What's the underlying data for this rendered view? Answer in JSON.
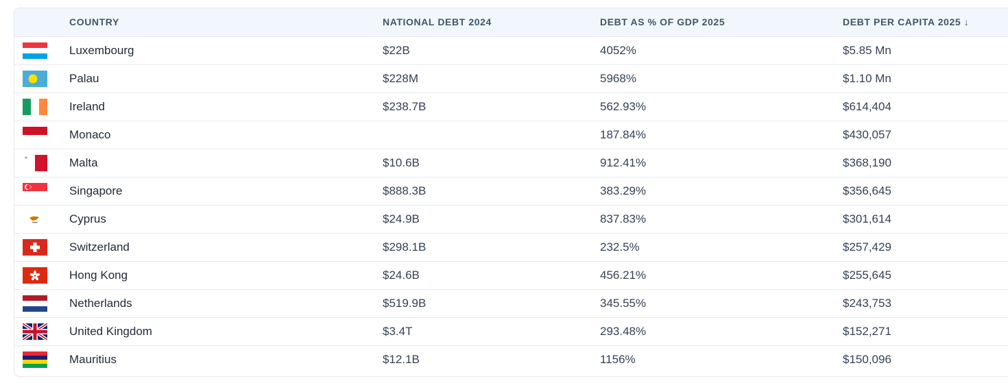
{
  "table": {
    "headers": {
      "country": "COUNTRY",
      "national_debt": "NATIONAL DEBT 2024",
      "debt_gdp": "DEBT AS % OF GDP 2025",
      "debt_per_capita": "DEBT PER CAPITA 2025",
      "sort_arrow": "↓"
    },
    "rows": [
      {
        "flag": "luxembourg-flag-icon",
        "country": "Luxembourg",
        "national_debt": "$22B",
        "debt_gdp": "4052%",
        "per_capita": "$5.85 Mn"
      },
      {
        "flag": "palau-flag-icon",
        "country": "Palau",
        "national_debt": "$228M",
        "debt_gdp": "5968%",
        "per_capita": "$1.10 Mn"
      },
      {
        "flag": "ireland-flag-icon",
        "country": "Ireland",
        "national_debt": "$238.7B",
        "debt_gdp": "562.93%",
        "per_capita": "$614,404"
      },
      {
        "flag": "monaco-flag-icon",
        "country": "Monaco",
        "national_debt": "",
        "debt_gdp": "187.84%",
        "per_capita": "$430,057"
      },
      {
        "flag": "malta-flag-icon",
        "country": "Malta",
        "national_debt": "$10.6B",
        "debt_gdp": "912.41%",
        "per_capita": "$368,190"
      },
      {
        "flag": "singapore-flag-icon",
        "country": "Singapore",
        "national_debt": "$888.3B",
        "debt_gdp": "383.29%",
        "per_capita": "$356,645"
      },
      {
        "flag": "cyprus-flag-icon",
        "country": "Cyprus",
        "national_debt": "$24.9B",
        "debt_gdp": "837.83%",
        "per_capita": "$301,614"
      },
      {
        "flag": "switzerland-flag-icon",
        "country": "Switzerland",
        "national_debt": "$298.1B",
        "debt_gdp": "232.5%",
        "per_capita": "$257,429"
      },
      {
        "flag": "hong-kong-flag-icon",
        "country": "Hong Kong",
        "national_debt": "$24.6B",
        "debt_gdp": "456.21%",
        "per_capita": "$255,645"
      },
      {
        "flag": "netherlands-flag-icon",
        "country": "Netherlands",
        "national_debt": "$519.9B",
        "debt_gdp": "345.55%",
        "per_capita": "$243,753"
      },
      {
        "flag": "united-kingdom-flag-icon",
        "country": "United Kingdom",
        "national_debt": "$3.4T",
        "debt_gdp": "293.48%",
        "per_capita": "$152,271"
      },
      {
        "flag": "mauritius-flag-icon",
        "country": "Mauritius",
        "national_debt": "$12.1B",
        "debt_gdp": "1156%",
        "per_capita": "$150,096"
      }
    ]
  }
}
